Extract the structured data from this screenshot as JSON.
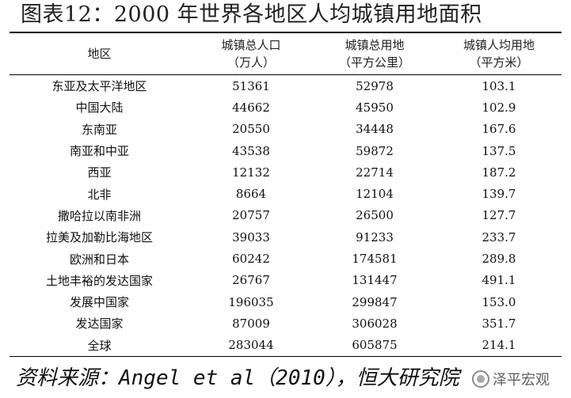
{
  "title": "图表12：2000 年世界各地区人均城镇用地面积",
  "table": {
    "headers": [
      {
        "line1": "地区",
        "line2": ""
      },
      {
        "line1": "城镇总人口",
        "line2": "（万人）"
      },
      {
        "line1": "城镇总用地",
        "line2": "（平方公里）"
      },
      {
        "line1": "城镇人均用地",
        "line2": "（平方米）"
      }
    ],
    "rows": [
      [
        "东亚及太平洋地区",
        "51361",
        "52978",
        "103.1"
      ],
      [
        "中国大陆",
        "44662",
        "45950",
        "102.9"
      ],
      [
        "东南亚",
        "20550",
        "34448",
        "167.6"
      ],
      [
        "南亚和中亚",
        "43538",
        "59872",
        "137.5"
      ],
      [
        "西亚",
        "12132",
        "22714",
        "187.2"
      ],
      [
        "北非",
        "8664",
        "12104",
        "139.7"
      ],
      [
        "撒哈拉以南非洲",
        "20757",
        "26500",
        "127.7"
      ],
      [
        "拉美及加勒比海地区",
        "39033",
        "91233",
        "233.7"
      ],
      [
        "欧洲和日本",
        "60242",
        "174581",
        "289.8"
      ],
      [
        "土地丰裕的发达国家",
        "26767",
        "131447",
        "491.1"
      ],
      [
        "发展中国家",
        "196035",
        "299847",
        "153.0"
      ],
      [
        "发达国家",
        "87009",
        "306028",
        "351.7"
      ],
      [
        "全球",
        "283044",
        "605875",
        "214.1"
      ]
    ]
  },
  "source": "资料来源：Angel et al（2010），恒大研究院",
  "watermark": {
    "text": "泽平宏观",
    "icon": "wechat-icon"
  }
}
